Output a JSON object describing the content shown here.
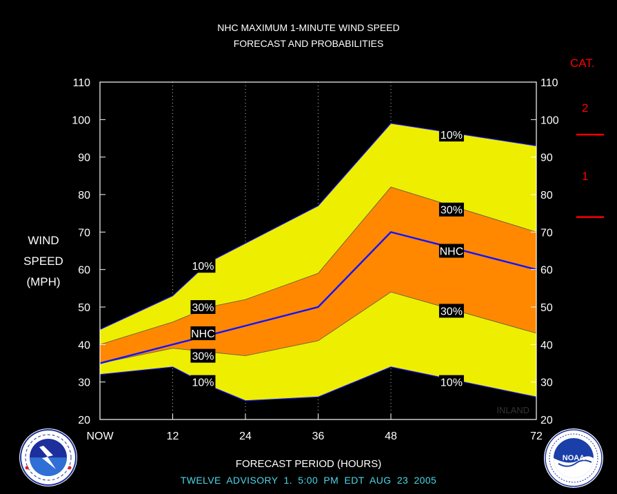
{
  "title_line1": "NHC MAXIMUM 1-MINUTE WIND SPEED",
  "title_line2": "FORECAST AND PROBABILITIES",
  "ylabel": [
    "WIND",
    "SPEED",
    "(MPH)"
  ],
  "xlabel": "FORECAST PERIOD (HOURS)",
  "footer": "TWELVE   ADVISORY  1. 5:00 PM EDT AUG 23 2005",
  "inland_label": "INLAND",
  "category": {
    "heading": "CAT.",
    "labels": [
      "2",
      "1"
    ],
    "thresholds_mph": [
      96,
      74
    ]
  },
  "colors": {
    "background": "#000000",
    "outer_band": "#eeee00",
    "inner_band": "#ff8800",
    "nhc_line": "#1414ff",
    "axis_text": "#ffffff",
    "category": "#ff0000",
    "footer": "#4ad8e8"
  },
  "logos": {
    "left": "nws-logo",
    "right": "noaa-logo"
  },
  "chart_data": {
    "type": "area",
    "x": [
      0,
      12,
      24,
      36,
      48,
      72
    ],
    "x_tick_labels": [
      "NOW",
      "12",
      "24",
      "36",
      "48",
      "72"
    ],
    "xlim": [
      0,
      72
    ],
    "ylim": [
      20,
      110
    ],
    "y_ticks": [
      20,
      30,
      40,
      50,
      60,
      70,
      80,
      90,
      100,
      110
    ],
    "gridlines": "vertical dotted",
    "series": [
      {
        "name": "10%",
        "role": "upper_outer",
        "x": [
          0,
          12,
          18,
          24,
          36,
          48,
          72
        ],
        "values": [
          44,
          53,
          62,
          67,
          77,
          99,
          93
        ]
      },
      {
        "name": "30%",
        "role": "upper_inner",
        "x": [
          0,
          12,
          18,
          24,
          36,
          48,
          72
        ],
        "values": [
          40,
          46,
          50,
          52,
          59,
          82,
          70
        ]
      },
      {
        "name": "NHC",
        "role": "forecast",
        "x": [
          0,
          12,
          24,
          36,
          48,
          72
        ],
        "values": [
          35,
          40,
          45,
          50,
          70,
          60
        ]
      },
      {
        "name": "30%",
        "role": "lower_inner",
        "x": [
          0,
          12,
          18,
          24,
          36,
          48,
          72
        ],
        "values": [
          35,
          39,
          38,
          37,
          41,
          54,
          43
        ]
      },
      {
        "name": "10%",
        "role": "lower_outer",
        "x": [
          0,
          12,
          18,
          24,
          36,
          48,
          72
        ],
        "values": [
          32,
          34,
          29,
          25,
          26,
          34,
          26
        ]
      }
    ],
    "annotations": [
      {
        "text": "10%",
        "x": 17,
        "y": 61
      },
      {
        "text": "30%",
        "x": 17,
        "y": 50
      },
      {
        "text": "NHC",
        "x": 17,
        "y": 43
      },
      {
        "text": "30%",
        "x": 17,
        "y": 37
      },
      {
        "text": "10%",
        "x": 17,
        "y": 30
      },
      {
        "text": "10%",
        "x": 58,
        "y": 96
      },
      {
        "text": "30%",
        "x": 58,
        "y": 76
      },
      {
        "text": "NHC",
        "x": 58,
        "y": 65
      },
      {
        "text": "30%",
        "x": 58,
        "y": 49
      },
      {
        "text": "10%",
        "x": 58,
        "y": 30
      }
    ]
  }
}
